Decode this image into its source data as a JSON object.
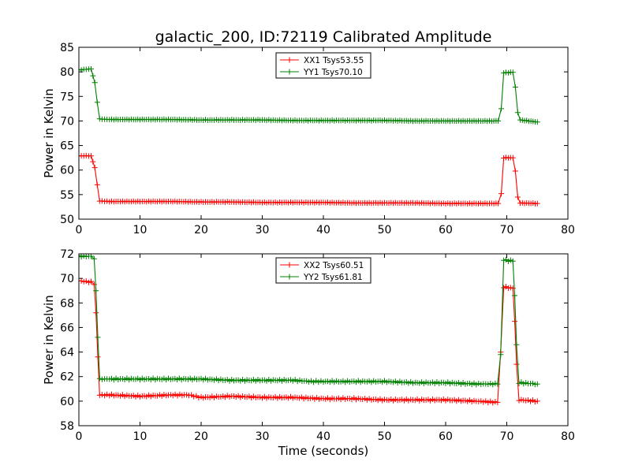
{
  "figure": {
    "title": "galactic_200, ID:72119 Calibrated Amplitude"
  },
  "chart_data": [
    {
      "type": "line",
      "title": "galactic_200, ID:72119 Calibrated Amplitude",
      "xlabel": "",
      "ylabel": "Power in Kelvin",
      "xlim": [
        0,
        80
      ],
      "ylim": [
        50,
        85
      ],
      "xticks": [
        0,
        10,
        20,
        30,
        40,
        50,
        60,
        70,
        80
      ],
      "yticks": [
        50,
        55,
        60,
        65,
        70,
        75,
        80,
        85
      ],
      "grid": false,
      "legend_position": "top-center",
      "marker": "plus",
      "series": [
        {
          "name": "XX1 Tsys53.55",
          "color": "#ff0000",
          "points": [
            [
              0,
              62.9
            ],
            [
              2.0,
              62.9
            ],
            [
              2.6,
              60.5
            ],
            [
              3.0,
              57.0
            ],
            [
              3.4,
              53.7
            ],
            [
              5,
              53.6
            ],
            [
              10,
              53.6
            ],
            [
              15,
              53.6
            ],
            [
              20,
              53.5
            ],
            [
              25,
              53.5
            ],
            [
              30,
              53.4
            ],
            [
              35,
              53.4
            ],
            [
              40,
              53.4
            ],
            [
              45,
              53.3
            ],
            [
              50,
              53.3
            ],
            [
              55,
              53.3
            ],
            [
              60,
              53.2
            ],
            [
              65,
              53.2
            ],
            [
              68.6,
              53.2
            ],
            [
              69.1,
              55.2
            ],
            [
              69.5,
              62.5
            ],
            [
              71.0,
              62.5
            ],
            [
              71.4,
              59.8
            ],
            [
              71.8,
              54.5
            ],
            [
              72.2,
              53.3
            ],
            [
              75,
              53.2
            ]
          ]
        },
        {
          "name": "YY1 Tsys70.10",
          "color": "#008000",
          "points": [
            [
              0,
              80.4
            ],
            [
              2.0,
              80.6
            ],
            [
              2.6,
              77.8
            ],
            [
              3.0,
              73.8
            ],
            [
              3.4,
              70.4
            ],
            [
              5,
              70.3
            ],
            [
              10,
              70.3
            ],
            [
              15,
              70.3
            ],
            [
              20,
              70.2
            ],
            [
              25,
              70.2
            ],
            [
              30,
              70.2
            ],
            [
              35,
              70.1
            ],
            [
              40,
              70.1
            ],
            [
              45,
              70.1
            ],
            [
              50,
              70.1
            ],
            [
              55,
              70.0
            ],
            [
              60,
              70.0
            ],
            [
              65,
              70.0
            ],
            [
              68.6,
              70.0
            ],
            [
              69.1,
              72.5
            ],
            [
              69.5,
              79.8
            ],
            [
              71.0,
              79.9
            ],
            [
              71.4,
              76.9
            ],
            [
              71.8,
              71.7
            ],
            [
              72.2,
              70.2
            ],
            [
              75,
              69.8
            ]
          ]
        }
      ]
    },
    {
      "type": "line",
      "xlabel": "Time (seconds)",
      "ylabel": "Power in Kelvin",
      "xlim": [
        0,
        80
      ],
      "ylim": [
        58,
        72
      ],
      "xticks": [
        0,
        10,
        20,
        30,
        40,
        50,
        60,
        70,
        80
      ],
      "yticks": [
        58,
        60,
        62,
        64,
        66,
        68,
        70,
        72
      ],
      "grid": false,
      "legend_position": "top-center",
      "marker": "plus",
      "series": [
        {
          "name": "XX2 Tsys60.51",
          "color": "#ff0000",
          "points": [
            [
              0,
              69.8
            ],
            [
              2.0,
              69.7
            ],
            [
              2.5,
              69.5
            ],
            [
              2.8,
              67.2
            ],
            [
              3.1,
              63.6
            ],
            [
              3.4,
              60.5
            ],
            [
              5,
              60.5
            ],
            [
              10,
              60.4
            ],
            [
              15,
              60.5
            ],
            [
              18,
              60.5
            ],
            [
              20,
              60.3
            ],
            [
              25,
              60.4
            ],
            [
              30,
              60.3
            ],
            [
              35,
              60.3
            ],
            [
              40,
              60.2
            ],
            [
              45,
              60.2
            ],
            [
              50,
              60.1
            ],
            [
              55,
              60.1
            ],
            [
              60,
              60.1
            ],
            [
              65,
              60.0
            ],
            [
              68.5,
              59.9
            ],
            [
              69.0,
              64.0
            ],
            [
              69.5,
              69.3
            ],
            [
              71.0,
              69.2
            ],
            [
              71.3,
              66.5
            ],
            [
              71.6,
              63.0
            ],
            [
              72.0,
              60.1
            ],
            [
              75,
              60.0
            ]
          ]
        },
        {
          "name": "YY2 Tsys61.81",
          "color": "#008000",
          "points": [
            [
              0,
              71.8
            ],
            [
              2.0,
              71.8
            ],
            [
              2.5,
              71.6
            ],
            [
              2.8,
              69.0
            ],
            [
              3.1,
              65.2
            ],
            [
              3.4,
              61.8
            ],
            [
              5,
              61.8
            ],
            [
              10,
              61.8
            ],
            [
              15,
              61.8
            ],
            [
              20,
              61.8
            ],
            [
              25,
              61.7
            ],
            [
              30,
              61.7
            ],
            [
              35,
              61.7
            ],
            [
              38,
              61.6
            ],
            [
              40,
              61.6
            ],
            [
              45,
              61.6
            ],
            [
              50,
              61.6
            ],
            [
              55,
              61.5
            ],
            [
              60,
              61.5
            ],
            [
              65,
              61.4
            ],
            [
              68.5,
              61.4
            ],
            [
              69.0,
              63.8
            ],
            [
              69.5,
              71.5
            ],
            [
              71.0,
              71.4
            ],
            [
              71.3,
              68.6
            ],
            [
              71.6,
              64.6
            ],
            [
              72.0,
              61.5
            ],
            [
              75,
              61.4
            ]
          ]
        }
      ]
    }
  ]
}
